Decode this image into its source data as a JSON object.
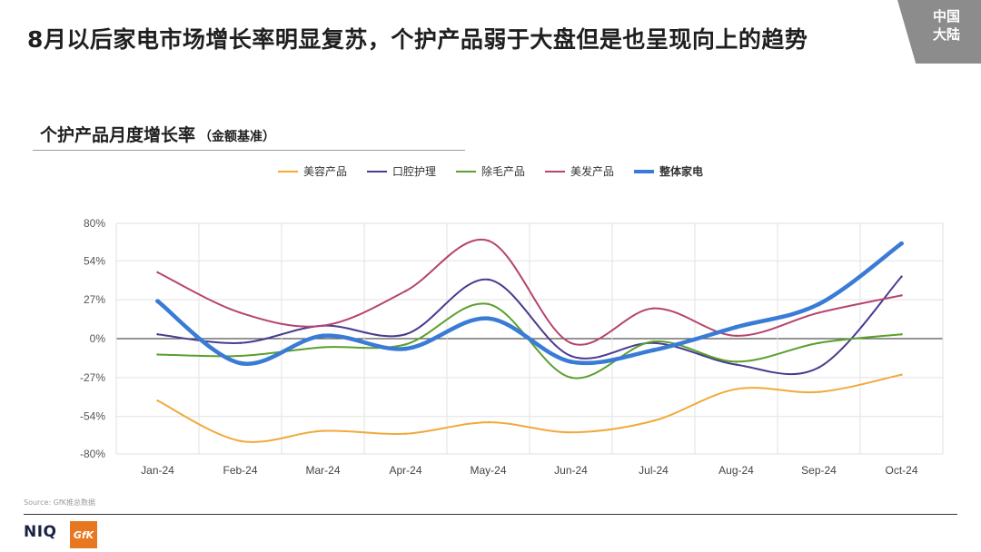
{
  "page": {
    "headline": "8月以后家电市场增长率明显复苏，个护产品弱于大盘但是也呈现向上的趋势",
    "corner_badge": [
      "中国",
      "大陆"
    ],
    "source": "Source: GfK推总数据",
    "logos": {
      "niq": "NIQ",
      "gfk": "GfK"
    }
  },
  "chart_data": {
    "type": "line",
    "title": "个护产品月度增长率",
    "subtitle": "（金额基准）",
    "xlabel": "",
    "ylabel": "",
    "categories": [
      "Jan-24",
      "Feb-24",
      "Mar-24",
      "Apr-24",
      "May-24",
      "Jun-24",
      "Jul-24",
      "Aug-24",
      "Sep-24",
      "Oct-24"
    ],
    "y_ticks": [
      "80%",
      "54%",
      "27%",
      "0%",
      "-27%",
      "-54%",
      "-80%"
    ],
    "ylim": [
      -80,
      80
    ],
    "grid": true,
    "legend_position": "top-center",
    "series": [
      {
        "name": "美容产品",
        "color": "#f2a93b",
        "thick": false,
        "values": [
          -43,
          -71,
          -64,
          -66,
          -58,
          -65,
          -57,
          -35,
          -37,
          -25
        ]
      },
      {
        "name": "口腔护理",
        "color": "#4a3b8f",
        "thick": false,
        "values": [
          3,
          -3,
          9,
          3,
          41,
          -12,
          -3,
          -18,
          -20,
          43
        ]
      },
      {
        "name": "除毛产品",
        "color": "#5aa02c",
        "thick": false,
        "values": [
          -11,
          -12,
          -6,
          -4,
          24,
          -27,
          -2,
          -16,
          -3,
          3
        ]
      },
      {
        "name": "美发产品",
        "color": "#b5446e",
        "thick": false,
        "values": [
          46,
          18,
          9,
          33,
          68,
          -3,
          21,
          2,
          18,
          30
        ]
      },
      {
        "name": "整体家电",
        "color": "#3a7bd5",
        "thick": true,
        "values": [
          26,
          -17,
          2,
          -7,
          14,
          -16,
          -8,
          8,
          24,
          66
        ]
      }
    ]
  }
}
